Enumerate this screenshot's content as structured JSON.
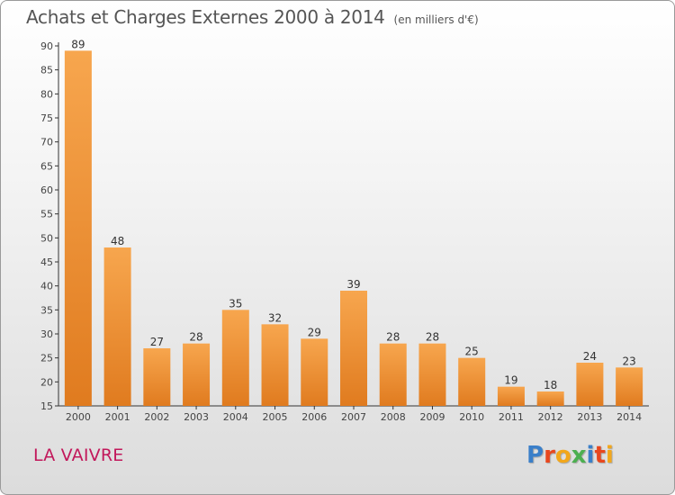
{
  "header": {
    "title": "Achats et Charges Externes 2000 à 2014",
    "subtitle": "(en milliers d'€)"
  },
  "location": "LA VAIVRE",
  "brand": {
    "text": "Proxiti",
    "letter_colors": [
      "#3a7fc9",
      "#e8471e",
      "#f2a71b",
      "#4caf50",
      "#3a7fc9",
      "#e8471e",
      "#f2a71b"
    ]
  },
  "colors": {
    "bar_top": "#f7a64e",
    "bar_bottom": "#e07b1f",
    "axis": "#333333",
    "location": "#c2185b"
  },
  "chart_data": {
    "type": "bar",
    "title": "Achats et Charges Externes 2000 à 2014",
    "subtitle": "(en milliers d'€)",
    "categories": [
      "2000",
      "2001",
      "2002",
      "2003",
      "2004",
      "2005",
      "2006",
      "2007",
      "2008",
      "2009",
      "2010",
      "2011",
      "2012",
      "2013",
      "2014"
    ],
    "values": [
      89,
      48,
      27,
      28,
      35,
      32,
      29,
      39,
      28,
      28,
      25,
      19,
      18,
      24,
      23
    ],
    "ylim": [
      15,
      90
    ],
    "yticks": [
      15,
      20,
      25,
      30,
      35,
      40,
      45,
      50,
      55,
      60,
      65,
      70,
      75,
      80,
      85,
      90
    ],
    "xlabel": "",
    "ylabel": "",
    "grid": false,
    "legend": "none"
  }
}
